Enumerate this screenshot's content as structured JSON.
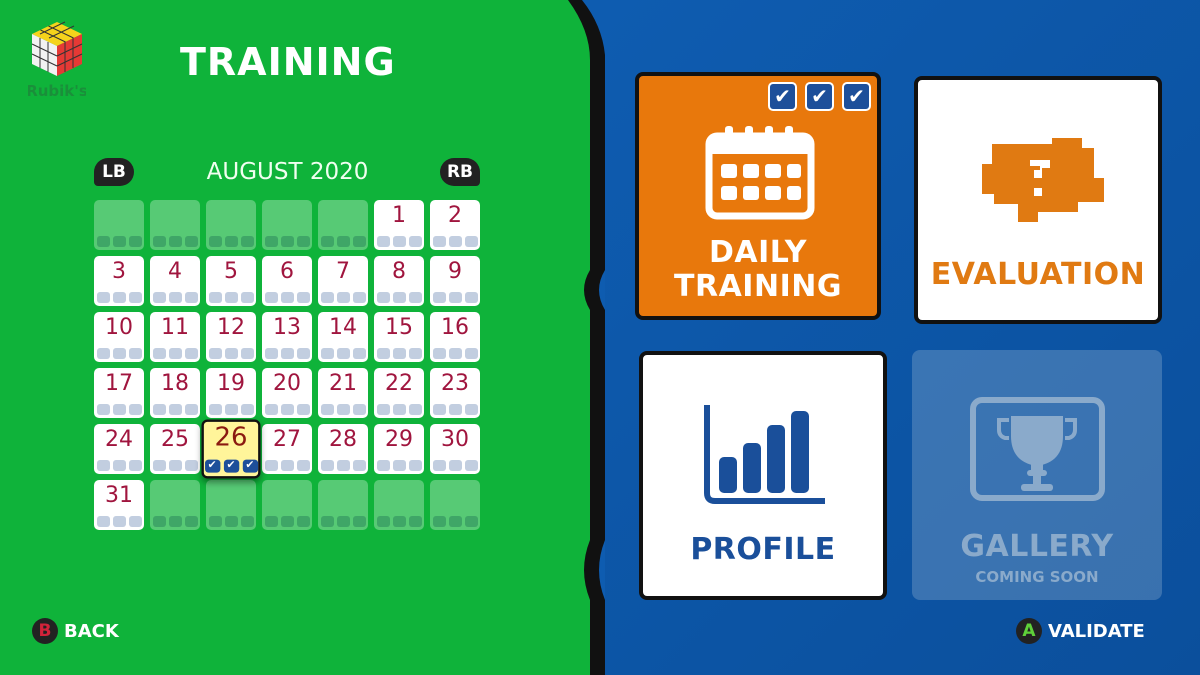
{
  "brand": {
    "logo_text": "Rubik's"
  },
  "header": {
    "title": "TRAINING"
  },
  "calendar": {
    "month_label": "AUGUST 2020",
    "prev_button": "LB",
    "next_button": "RB",
    "leading_blanks": 5,
    "days_in_month": 31,
    "total_cells": 42,
    "selected_day": 26,
    "completed_days": {
      "26": 3
    },
    "sessions_per_day": 3
  },
  "tiles": {
    "daily_training": {
      "label_line1": "DAILY",
      "label_line2": "TRAINING",
      "checks": 3,
      "color": "#e8780c"
    },
    "evaluation": {
      "label": "EVALUATION",
      "color": "#e07a12"
    },
    "profile": {
      "label": "PROFILE",
      "color": "#1a4f9a"
    },
    "gallery": {
      "label": "GALLERY",
      "sublabel": "COMING SOON"
    }
  },
  "footer": {
    "back_key": "B",
    "back_label": "BACK",
    "validate_key": "A",
    "validate_label": "VALIDATE"
  }
}
